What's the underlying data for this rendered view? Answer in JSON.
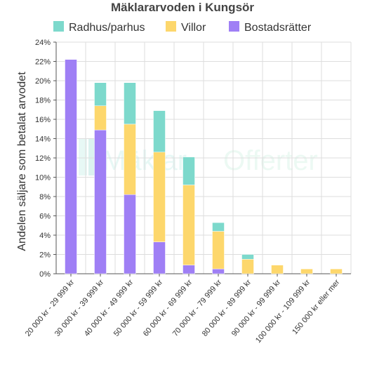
{
  "chart_data": {
    "type": "bar",
    "stacked": true,
    "title": "Mäklararvoden i Kungsör",
    "ylabel": "Andelen säljare som betalat arvodet",
    "xlabel": "",
    "ylim": [
      0,
      24
    ],
    "ytick_values": [
      0,
      2,
      4,
      6,
      8,
      10,
      12,
      14,
      16,
      18,
      20,
      22,
      24
    ],
    "ytick_labels": [
      "0%",
      "2%",
      "4%",
      "6%",
      "8%",
      "10%",
      "12%",
      "14%",
      "16%",
      "18%",
      "20%",
      "22%",
      "24%"
    ],
    "grid": true,
    "legend_position": "top",
    "categories": [
      "20 000 kr - 29 999 kr",
      "30 000 kr - 39 999 kr",
      "40 000 kr - 49 999 kr",
      "50 000 kr - 59 999 kr",
      "60 000 kr - 69 999 kr",
      "70 000 kr - 79 999 kr",
      "80 000 kr - 89 999 kr",
      "90 000 kr - 99 999 kr",
      "100 000 kr - 109 999 kr",
      "150 000 kr eller mer"
    ],
    "series": [
      {
        "name": "Bostadsrätter",
        "color": "#9f7ff5",
        "values": [
          22.2,
          14.9,
          8.2,
          3.3,
          0.9,
          0.5,
          0,
          0,
          0,
          0
        ]
      },
      {
        "name": "Villor",
        "color": "#fdd76c",
        "values": [
          0,
          2.5,
          7.3,
          9.3,
          8.3,
          3.9,
          1.5,
          0.9,
          0.5,
          0.5
        ]
      },
      {
        "name": "Radhus/parhus",
        "color": "#7dd9cc",
        "values": [
          0,
          2.4,
          4.3,
          4.3,
          2.9,
          0.9,
          0.5,
          0,
          0,
          0
        ]
      }
    ],
    "legend_order": [
      "Radhus/parhus",
      "Villor",
      "Bostadsrätter"
    ]
  },
  "watermark": {
    "text_a": "Mäklar",
    "text_b": "Offerter"
  }
}
